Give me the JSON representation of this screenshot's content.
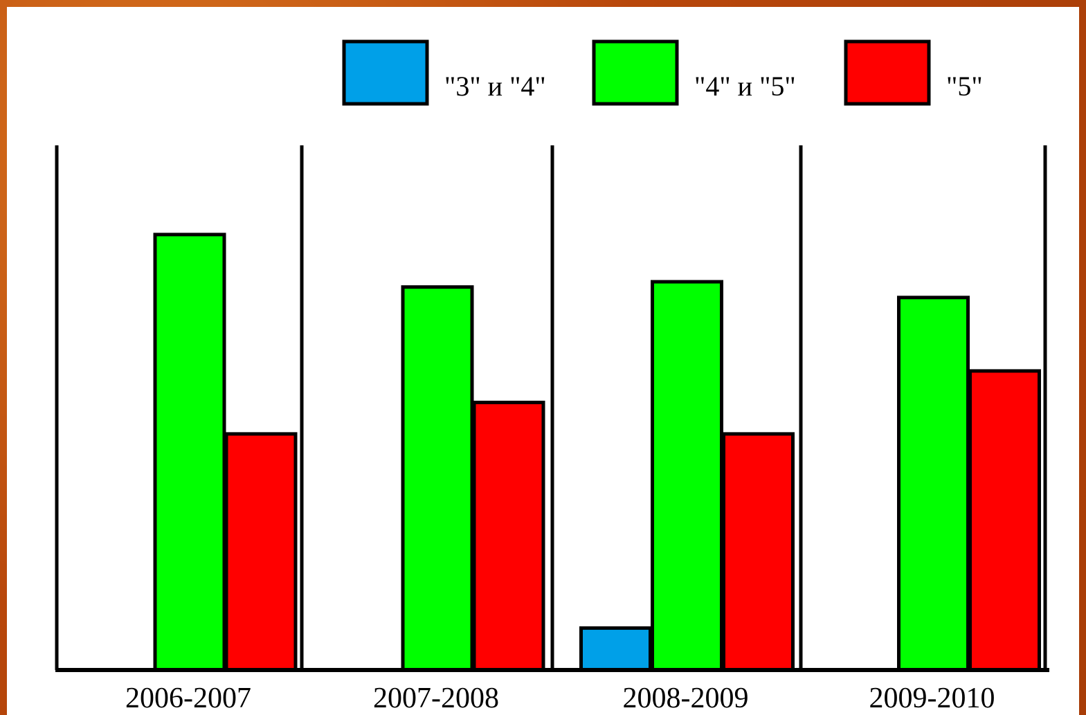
{
  "chart_data": {
    "type": "bar",
    "categories": [
      "2006-2007",
      "2007-2008",
      "2008-2009",
      "2009-2010"
    ],
    "series": [
      {
        "name": "\"3\" и \"4\"",
        "color": "#00a0e8",
        "values": [
          0,
          0,
          8,
          0
        ]
      },
      {
        "name": "\"4\" и \"5\"",
        "color": "#00ff00",
        "values": [
          83,
          73,
          74,
          71
        ]
      },
      {
        "name": "\"5\"",
        "color": "#ff0000",
        "values": [
          45,
          51,
          45,
          57
        ]
      }
    ],
    "title": "",
    "xlabel": "",
    "ylabel": "",
    "ylim": [
      0,
      100
    ],
    "legend_position": "top",
    "grid": false
  }
}
